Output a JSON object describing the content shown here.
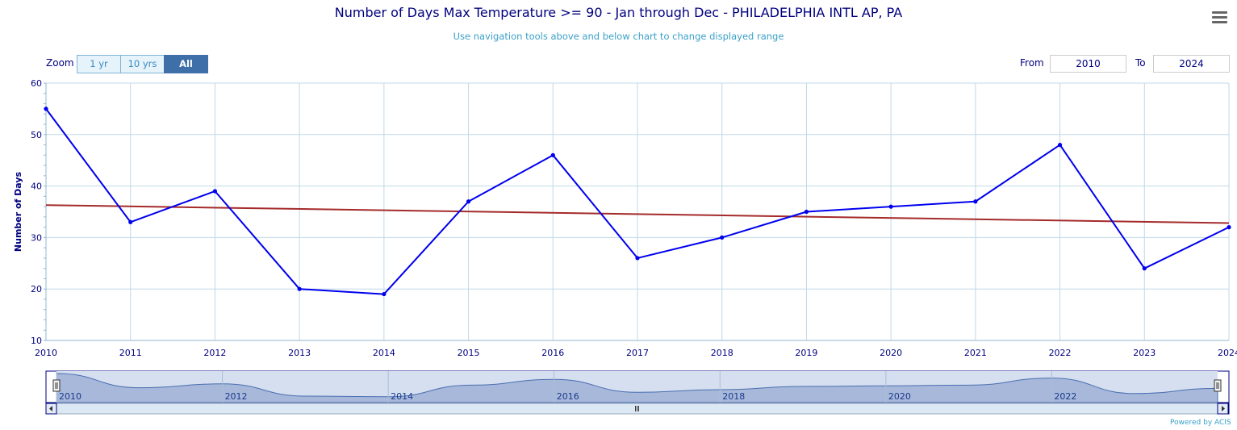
{
  "title": "Number of Days Max Temperature >= 90 - Jan through Dec - PHILADELPHIA INTL AP, PA",
  "subtitle": "Use navigation tools above and below chart to change displayed range",
  "menu_icon": "hamburger-menu-icon",
  "zoom": {
    "label": "Zoom",
    "buttons": [
      "1 yr",
      "10 yrs",
      "All"
    ],
    "active": "All"
  },
  "range": {
    "from_label": "From",
    "from_value": "2010",
    "to_label": "To",
    "to_value": "2024"
  },
  "credit": "Powered by ACIS",
  "colors": {
    "series": "#0000ee",
    "trend": "#a52a2a",
    "grid": "#c0d8e8",
    "axis_text": "#000080",
    "navigator_fill": "#9fb2d6",
    "navigator_bg": "#d6dff0"
  },
  "chart_data": {
    "type": "line",
    "title": "Number of Days Max Temperature >= 90 - Jan through Dec - PHILADELPHIA INTL AP, PA",
    "xlabel": "",
    "ylabel": "Number of Days",
    "x": [
      2010,
      2011,
      2012,
      2013,
      2014,
      2015,
      2016,
      2017,
      2018,
      2019,
      2020,
      2021,
      2022,
      2023,
      2024
    ],
    "series": [
      {
        "values": [
          55,
          33,
          39,
          20,
          19,
          37,
          46,
          26,
          30,
          35,
          36,
          37,
          48,
          24,
          32
        ]
      }
    ],
    "trendline": {
      "start": [
        2010,
        36.3
      ],
      "end": [
        2024,
        32.8
      ]
    },
    "xlim": [
      2010,
      2024
    ],
    "ylim": [
      10,
      60
    ],
    "yticks": [
      10,
      20,
      30,
      40,
      50,
      60
    ],
    "xticks": [
      2010,
      2011,
      2012,
      2013,
      2014,
      2015,
      2016,
      2017,
      2018,
      2019,
      2020,
      2021,
      2022,
      2023,
      2024
    ],
    "grid": true,
    "navigator": {
      "labels": [
        "2010",
        "2012",
        "2014",
        "2016",
        "2018",
        "2020",
        "2022"
      ]
    }
  }
}
